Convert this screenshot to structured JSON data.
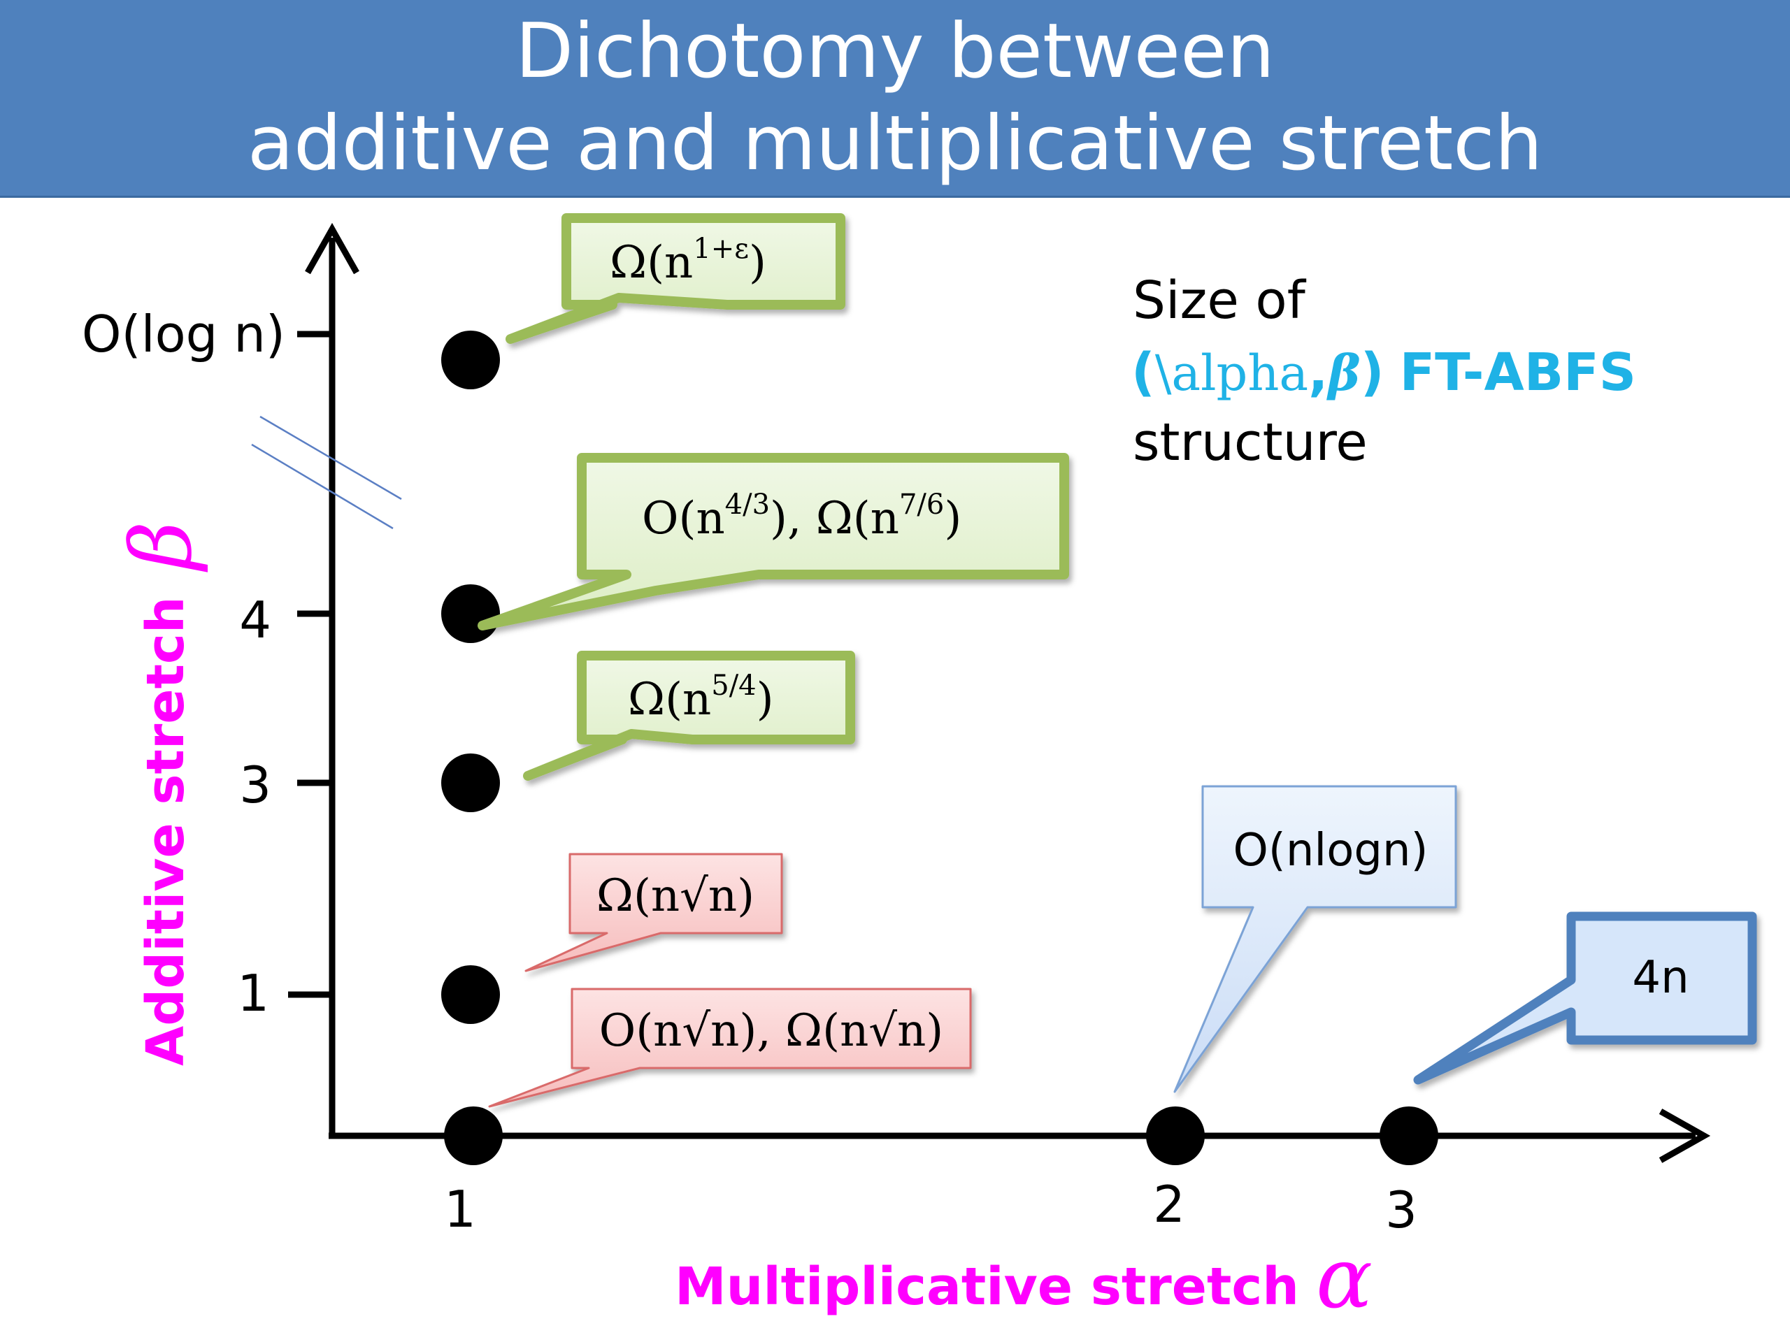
{
  "title": {
    "line1": "Dichotomy between",
    "line2": "additive and multiplicative stretch"
  },
  "axes": {
    "x_title": "Multiplicative stretch",
    "x_symbol": "α",
    "y_title": "Additive stretch",
    "y_symbol": "β",
    "x_ticks": [
      "1",
      "2",
      "3"
    ],
    "y_ticks": [
      "O(log n)",
      "4",
      "3",
      "1"
    ]
  },
  "side_text": {
    "line1": "Size of",
    "line2_open": "(",
    "line2_tex": "\\alpha",
    "line2_comma": ",",
    "line2_beta": "β",
    "line2_close": ")",
    "line2_suffix": "FT-ABFS",
    "line3": "structure"
  },
  "callouts": {
    "c1": {
      "base": "Ω(n",
      "sup": "1+ε",
      "end": ")"
    },
    "c2": {
      "a": "O(n",
      "a_sup": "4/3",
      "mid": "), Ω(n",
      "b_sup": "7/6",
      "end": ")"
    },
    "c3": {
      "base": "Ω(n",
      "sup": "5/4",
      "end": ")"
    },
    "c4": {
      "text": "Ω(n√n)"
    },
    "c5": {
      "text": "O(n√n), Ω(n√n)"
    },
    "c6": {
      "text": "O(nlogn)"
    },
    "c7": {
      "text": "4n"
    }
  },
  "colors": {
    "header": "#4f81bd",
    "green_fill": "#e4f2d2",
    "green_border": "#9bbb59",
    "red_fill": "#f9cccc",
    "red_border": "#d96a6a",
    "blue_fill": "#d6e6fa",
    "blue_border": "#7ba3d6",
    "dark_blue_border": "#4f81bd",
    "axis_title": "#ff00ff",
    "side_blue": "#1fb2e6"
  }
}
